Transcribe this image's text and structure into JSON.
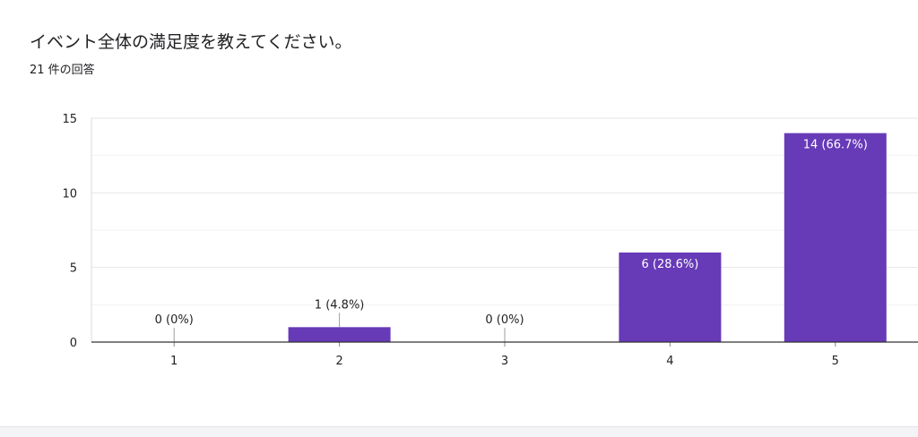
{
  "question": {
    "title": "イベント全体の満足度を教えてください。",
    "response_count": "21 件の回答"
  },
  "chart_data": {
    "type": "bar",
    "title": "",
    "xlabel": "",
    "ylabel": "",
    "categories": [
      "1",
      "2",
      "3",
      "4",
      "5"
    ],
    "values": [
      0,
      1,
      0,
      6,
      14
    ],
    "data_labels": [
      "0 (0%)",
      "1 (4.8%)",
      "0 (0%)",
      "6 (28.6%)",
      "14 (66.7%)"
    ],
    "ylim": [
      0,
      15
    ],
    "yticks": [
      "0",
      "5",
      "10",
      "15"
    ],
    "ytick_values": [
      0,
      5,
      10,
      15
    ],
    "gridlines": [
      0,
      2.5,
      5,
      7.5,
      10,
      12.5,
      15
    ],
    "grid": true,
    "legend": "none",
    "bar_color": "#673ab7",
    "label_color_inside": "#ffffff",
    "label_color_outside": "#222222"
  }
}
